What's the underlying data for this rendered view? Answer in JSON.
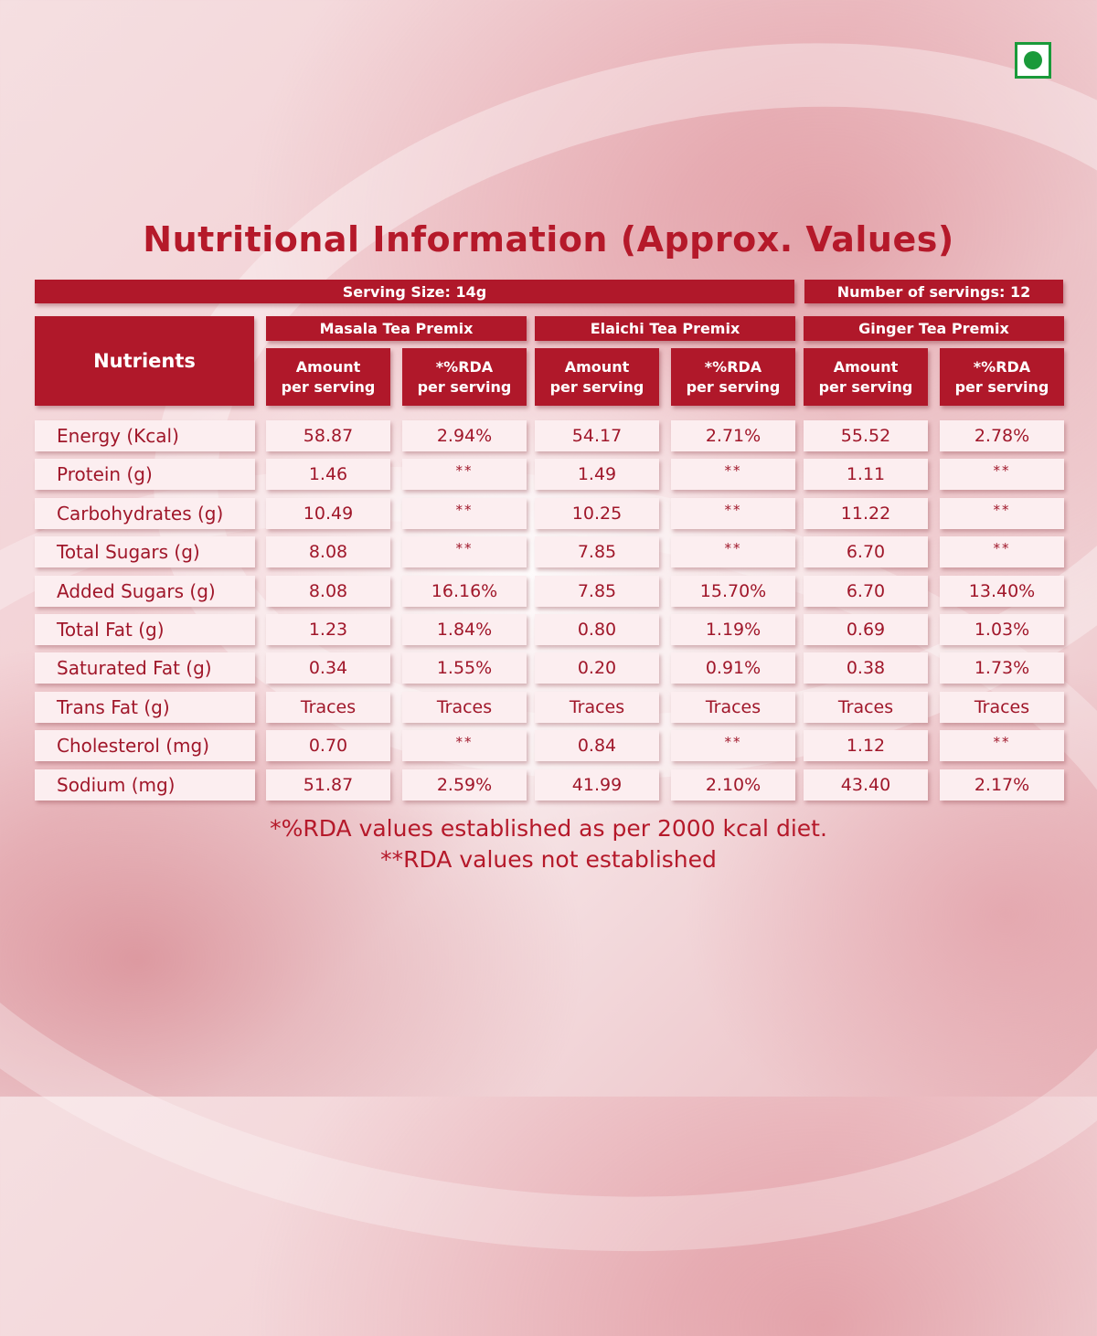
{
  "title": "Nutritional Information (Approx. Values)",
  "serving_size": "Serving Size: 14g",
  "servings_count": "Number of servings: 12",
  "nutrients_header": "Nutrients",
  "products": [
    {
      "name": "Masala Tea Premix",
      "amount_label": [
        "Amount",
        "per serving"
      ],
      "rda_label": [
        "*%RDA",
        "per serving"
      ]
    },
    {
      "name": "Elaichi Tea Premix",
      "amount_label": [
        "Amount",
        "per serving"
      ],
      "rda_label": [
        "*%RDA",
        "per serving"
      ]
    },
    {
      "name": "Ginger Tea Premix",
      "amount_label": [
        "Amount",
        "per serving"
      ],
      "rda_label": [
        "*%RDA",
        "per serving"
      ]
    }
  ],
  "rows": [
    {
      "nutrient": "Energy (Kcal)",
      "values": [
        "58.87",
        "2.94%",
        "54.17",
        "2.71%",
        "55.52",
        "2.78%"
      ]
    },
    {
      "nutrient": "Protein (g)",
      "values": [
        "1.46",
        "**",
        "1.49",
        "**",
        "1.11",
        "**"
      ]
    },
    {
      "nutrient": "Carbohydrates (g)",
      "values": [
        "10.49",
        "**",
        "10.25",
        "**",
        "11.22",
        "**"
      ]
    },
    {
      "nutrient": "Total Sugars (g)",
      "values": [
        "8.08",
        "**",
        "7.85",
        "**",
        "6.70",
        "**"
      ]
    },
    {
      "nutrient": "Added Sugars (g)",
      "values": [
        "8.08",
        "16.16%",
        "7.85",
        "15.70%",
        "6.70",
        "13.40%"
      ]
    },
    {
      "nutrient": "Total Fat (g)",
      "values": [
        "1.23",
        "1.84%",
        "0.80",
        "1.19%",
        "0.69",
        "1.03%"
      ]
    },
    {
      "nutrient": "Saturated Fat (g)",
      "values": [
        "0.34",
        "1.55%",
        "0.20",
        "0.91%",
        "0.38",
        "1.73%"
      ]
    },
    {
      "nutrient": "Trans Fat (g)",
      "values": [
        "Traces",
        "Traces",
        "Traces",
        "Traces",
        "Traces",
        "Traces"
      ]
    },
    {
      "nutrient": "Cholesterol (mg)",
      "values": [
        "0.70",
        "**",
        "0.84",
        "**",
        "1.12",
        "**"
      ]
    },
    {
      "nutrient": "Sodium (mg)",
      "values": [
        "51.87",
        "2.59%",
        "41.99",
        "2.10%",
        "43.40",
        "2.17%"
      ]
    }
  ],
  "footnotes": [
    "*%RDA values established as per 2000 kcal diet.",
    "**RDA values not established"
  ],
  "colors": {
    "brand_red": "#b0182a",
    "veg_green": "#1a9a3a"
  }
}
